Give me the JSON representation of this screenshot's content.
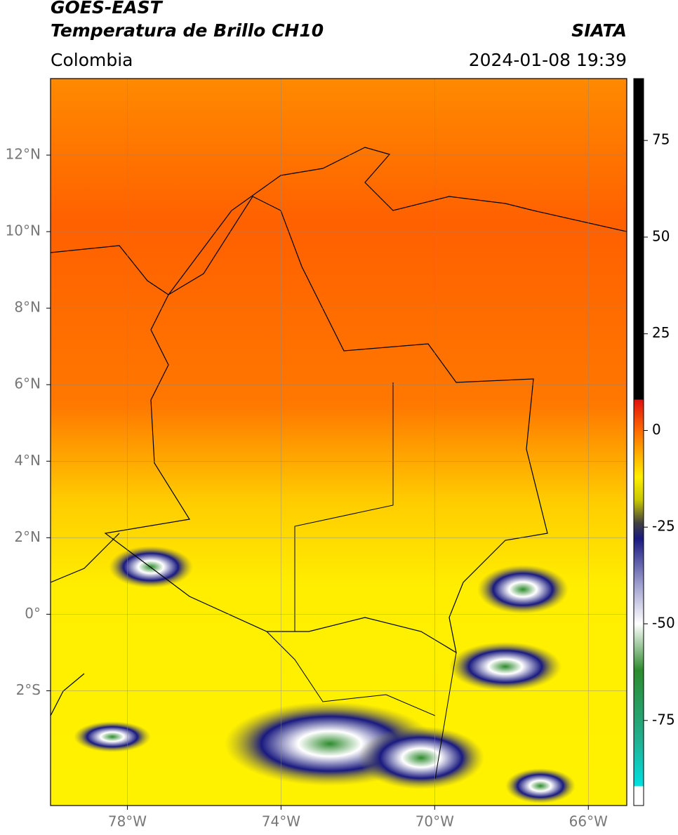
{
  "header": {
    "title": "GOES-EAST",
    "subtitle": "Temperatura de Brillo CH10",
    "source": "SIATA",
    "region": "Colombia",
    "datetime": "2024-01-08 19:39"
  },
  "map": {
    "lonlim": [
      -80,
      -65
    ],
    "latlim": [
      -5,
      14
    ],
    "lonticks": [
      {
        "value": -78,
        "label": "78°W"
      },
      {
        "value": -74,
        "label": "74°W"
      },
      {
        "value": -70,
        "label": "70°W"
      },
      {
        "value": -66,
        "label": "66°W"
      }
    ],
    "latticks": [
      {
        "value": 12,
        "label": "12°N"
      },
      {
        "value": 10,
        "label": "10°N"
      },
      {
        "value": 8,
        "label": "8°N"
      },
      {
        "value": 6,
        "label": "6°N"
      },
      {
        "value": 4,
        "label": "4°N"
      },
      {
        "value": 2,
        "label": "2°N"
      },
      {
        "value": 0,
        "label": "0°"
      },
      {
        "value": -2,
        "label": "2°S"
      }
    ],
    "grid": true
  },
  "colorbar": {
    "lim": [
      -97,
      91
    ],
    "ticks": [
      75,
      50,
      25,
      0,
      -25,
      -50,
      -75
    ],
    "stops": [
      {
        "value": 91,
        "color": "#000000"
      },
      {
        "value": 8,
        "color": "#000000"
      },
      {
        "value": 8,
        "color": "#e01010"
      },
      {
        "value": 0,
        "color": "#ff6a00"
      },
      {
        "value": -12,
        "color": "#ffee00"
      },
      {
        "value": -18,
        "color": "#c8c800"
      },
      {
        "value": -24,
        "color": "#404040"
      },
      {
        "value": -28,
        "color": "#1a1a80"
      },
      {
        "value": -40,
        "color": "#a0a0d0"
      },
      {
        "value": -50,
        "color": "#ffffff"
      },
      {
        "value": -62,
        "color": "#2e8b2e"
      },
      {
        "value": -80,
        "color": "#20b090"
      },
      {
        "value": -92,
        "color": "#00e0e0"
      },
      {
        "value": -92,
        "color": "#ffffff"
      },
      {
        "value": -97,
        "color": "#ffffff"
      }
    ]
  }
}
